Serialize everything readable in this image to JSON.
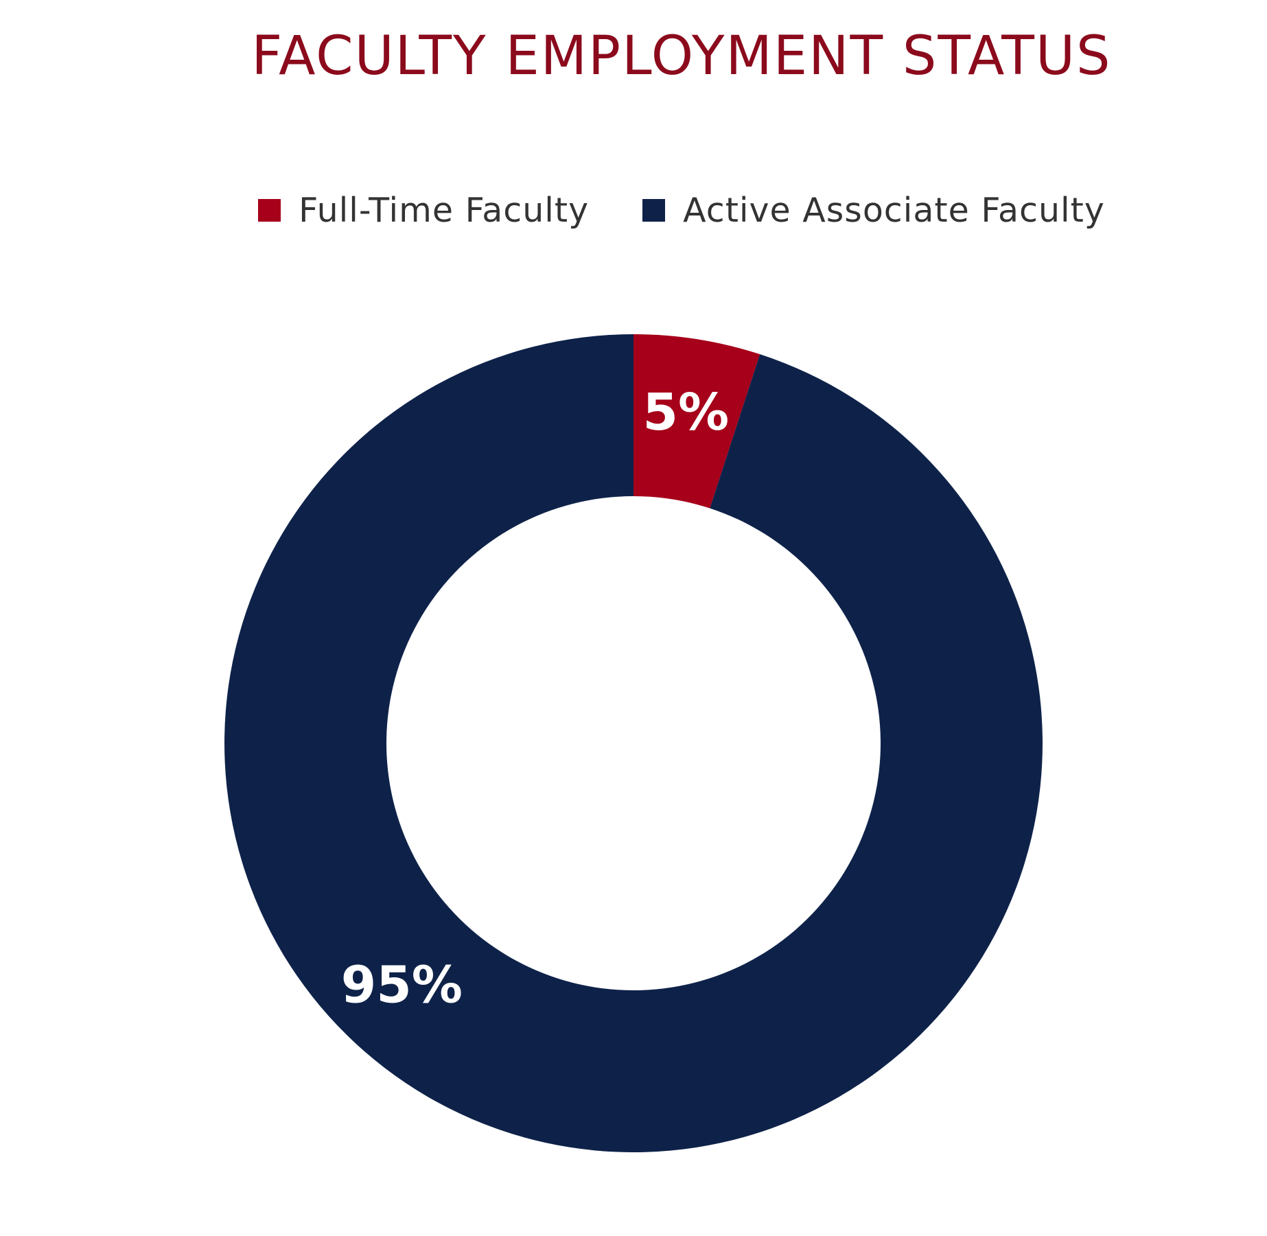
{
  "chart_data": {
    "type": "pie",
    "title": "FACULTY EMPLOYMENT STATUS",
    "donut": true,
    "legend_position": "top",
    "series": [
      {
        "name": "Full-Time Faculty",
        "value": 5,
        "label": "5%",
        "color": "#a6001a"
      },
      {
        "name": "Active Associate Faculty",
        "value": 95,
        "label": "95%",
        "color": "#0e2249"
      }
    ]
  },
  "colors": {
    "title": "#8b0a1c",
    "legend_text": "#333333",
    "background": "#ffffff"
  }
}
